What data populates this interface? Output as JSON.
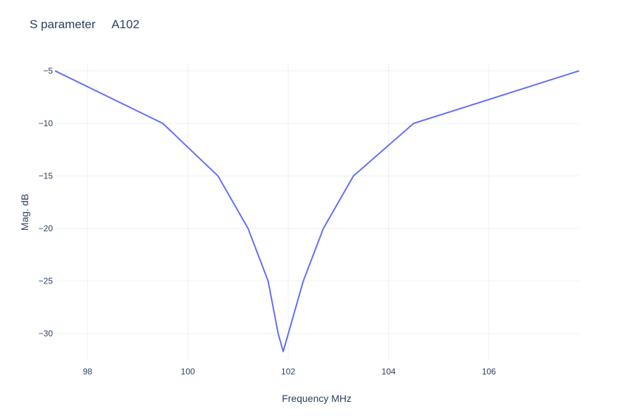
{
  "chart_data": {
    "type": "line",
    "title": "S parameter     A102",
    "xlabel": "Frequency MHz",
    "ylabel": "Mag. dB",
    "xlim": [
      97.35,
      107.8
    ],
    "ylim": [
      -32.6,
      -4.3
    ],
    "grid": true,
    "x_ticks": [
      98,
      100,
      102,
      104,
      106
    ],
    "y_ticks": [
      -5,
      -10,
      -15,
      -20,
      -25,
      -30
    ],
    "x_tick_labels": [
      "98",
      "100",
      "102",
      "104",
      "106"
    ],
    "y_tick_labels": [
      "−5",
      "−10",
      "−15",
      "−20",
      "−25",
      "−30"
    ],
    "series": [
      {
        "color": "#636efa",
        "x": [
          97.35,
          99.5,
          100.6,
          101.2,
          101.6,
          101.8,
          101.9,
          102.3,
          102.7,
          103.3,
          104.5,
          107.8
        ],
        "y": [
          -5,
          -10,
          -15,
          -20,
          -25,
          -30,
          -31.7,
          -25,
          -20,
          -15,
          -10,
          -5
        ]
      }
    ]
  }
}
